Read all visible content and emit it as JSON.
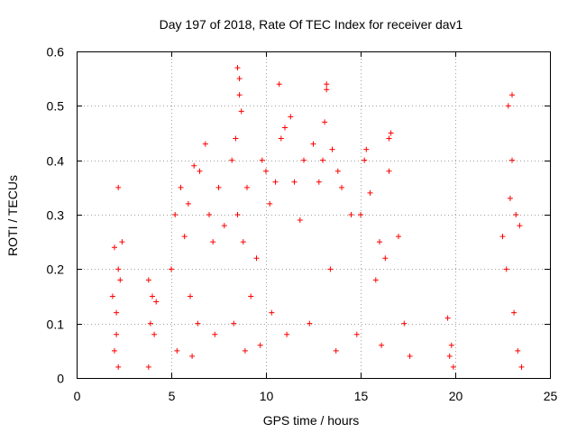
{
  "chart_data": {
    "type": "scatter",
    "title": "Day 197 of 2018, Rate Of TEC Index for receiver dav1",
    "xlabel": "GPS time / hours",
    "ylabel": "ROTI / TECUs",
    "xlim": [
      0,
      25
    ],
    "ylim": [
      0,
      0.6
    ],
    "xticks": [
      0,
      5,
      10,
      15,
      20,
      25
    ],
    "yticks": [
      0,
      0.1,
      0.2,
      0.3,
      0.4,
      0.5,
      0.6
    ],
    "xtick_labels": [
      "0",
      "5",
      "10",
      "15",
      "20",
      "25"
    ],
    "ytick_labels": [
      "0",
      "0.1",
      "0.2",
      "0.3",
      "0.4",
      "0.5",
      "0.6"
    ],
    "grid": true,
    "marker": "+",
    "color": "#ff0000",
    "series": [
      {
        "name": "ROTI",
        "points": [
          [
            2.0,
            0.05
          ],
          [
            2.1,
            0.12
          ],
          [
            2.2,
            0.2
          ],
          [
            2.0,
            0.24
          ],
          [
            2.2,
            0.35
          ],
          [
            1.9,
            0.15
          ],
          [
            2.3,
            0.18
          ],
          [
            2.4,
            0.25
          ],
          [
            2.1,
            0.08
          ],
          [
            2.2,
            0.02
          ],
          [
            3.8,
            0.02
          ],
          [
            3.9,
            0.1
          ],
          [
            4.0,
            0.15
          ],
          [
            3.8,
            0.18
          ],
          [
            4.1,
            0.08
          ],
          [
            4.2,
            0.14
          ],
          [
            5.0,
            0.2
          ],
          [
            5.2,
            0.3
          ],
          [
            5.5,
            0.35
          ],
          [
            5.7,
            0.26
          ],
          [
            5.9,
            0.32
          ],
          [
            6.2,
            0.39
          ],
          [
            6.5,
            0.38
          ],
          [
            6.8,
            0.43
          ],
          [
            6.0,
            0.15
          ],
          [
            6.4,
            0.1
          ],
          [
            7.0,
            0.3
          ],
          [
            7.2,
            0.25
          ],
          [
            7.5,
            0.35
          ],
          [
            7.8,
            0.28
          ],
          [
            5.3,
            0.05
          ],
          [
            6.1,
            0.04
          ],
          [
            7.3,
            0.08
          ],
          [
            8.2,
            0.4
          ],
          [
            8.4,
            0.44
          ],
          [
            8.5,
            0.57
          ],
          [
            8.6,
            0.55
          ],
          [
            8.6,
            0.52
          ],
          [
            8.7,
            0.49
          ],
          [
            8.5,
            0.3
          ],
          [
            8.8,
            0.25
          ],
          [
            9.0,
            0.35
          ],
          [
            9.2,
            0.15
          ],
          [
            8.3,
            0.1
          ],
          [
            8.9,
            0.05
          ],
          [
            9.5,
            0.22
          ],
          [
            9.8,
            0.4
          ],
          [
            10.0,
            0.38
          ],
          [
            10.2,
            0.32
          ],
          [
            10.5,
            0.36
          ],
          [
            10.7,
            0.54
          ],
          [
            10.8,
            0.44
          ],
          [
            11.0,
            0.46
          ],
          [
            11.3,
            0.48
          ],
          [
            11.5,
            0.36
          ],
          [
            11.8,
            0.29
          ],
          [
            10.3,
            0.12
          ],
          [
            11.1,
            0.08
          ],
          [
            9.7,
            0.06
          ],
          [
            12.0,
            0.4
          ],
          [
            12.5,
            0.43
          ],
          [
            12.8,
            0.36
          ],
          [
            13.0,
            0.4
          ],
          [
            13.2,
            0.54
          ],
          [
            13.2,
            0.53
          ],
          [
            13.1,
            0.47
          ],
          [
            13.5,
            0.42
          ],
          [
            13.8,
            0.38
          ],
          [
            13.4,
            0.2
          ],
          [
            12.3,
            0.1
          ],
          [
            13.7,
            0.05
          ],
          [
            14.0,
            0.35
          ],
          [
            14.5,
            0.3
          ],
          [
            15.0,
            0.3
          ],
          [
            15.2,
            0.4
          ],
          [
            15.3,
            0.42
          ],
          [
            15.5,
            0.34
          ],
          [
            15.8,
            0.18
          ],
          [
            16.0,
            0.25
          ],
          [
            16.3,
            0.22
          ],
          [
            16.5,
            0.44
          ],
          [
            16.6,
            0.45
          ],
          [
            16.5,
            0.38
          ],
          [
            17.0,
            0.26
          ],
          [
            17.3,
            0.1
          ],
          [
            17.6,
            0.04
          ],
          [
            14.8,
            0.08
          ],
          [
            16.1,
            0.06
          ],
          [
            19.6,
            0.11
          ],
          [
            19.8,
            0.06
          ],
          [
            19.9,
            0.02
          ],
          [
            19.7,
            0.04
          ],
          [
            22.5,
            0.26
          ],
          [
            22.7,
            0.2
          ],
          [
            22.8,
            0.5
          ],
          [
            23.0,
            0.52
          ],
          [
            23.0,
            0.4
          ],
          [
            22.9,
            0.33
          ],
          [
            23.2,
            0.3
          ],
          [
            23.4,
            0.28
          ],
          [
            23.1,
            0.12
          ],
          [
            23.3,
            0.05
          ],
          [
            23.5,
            0.02
          ]
        ]
      }
    ]
  }
}
